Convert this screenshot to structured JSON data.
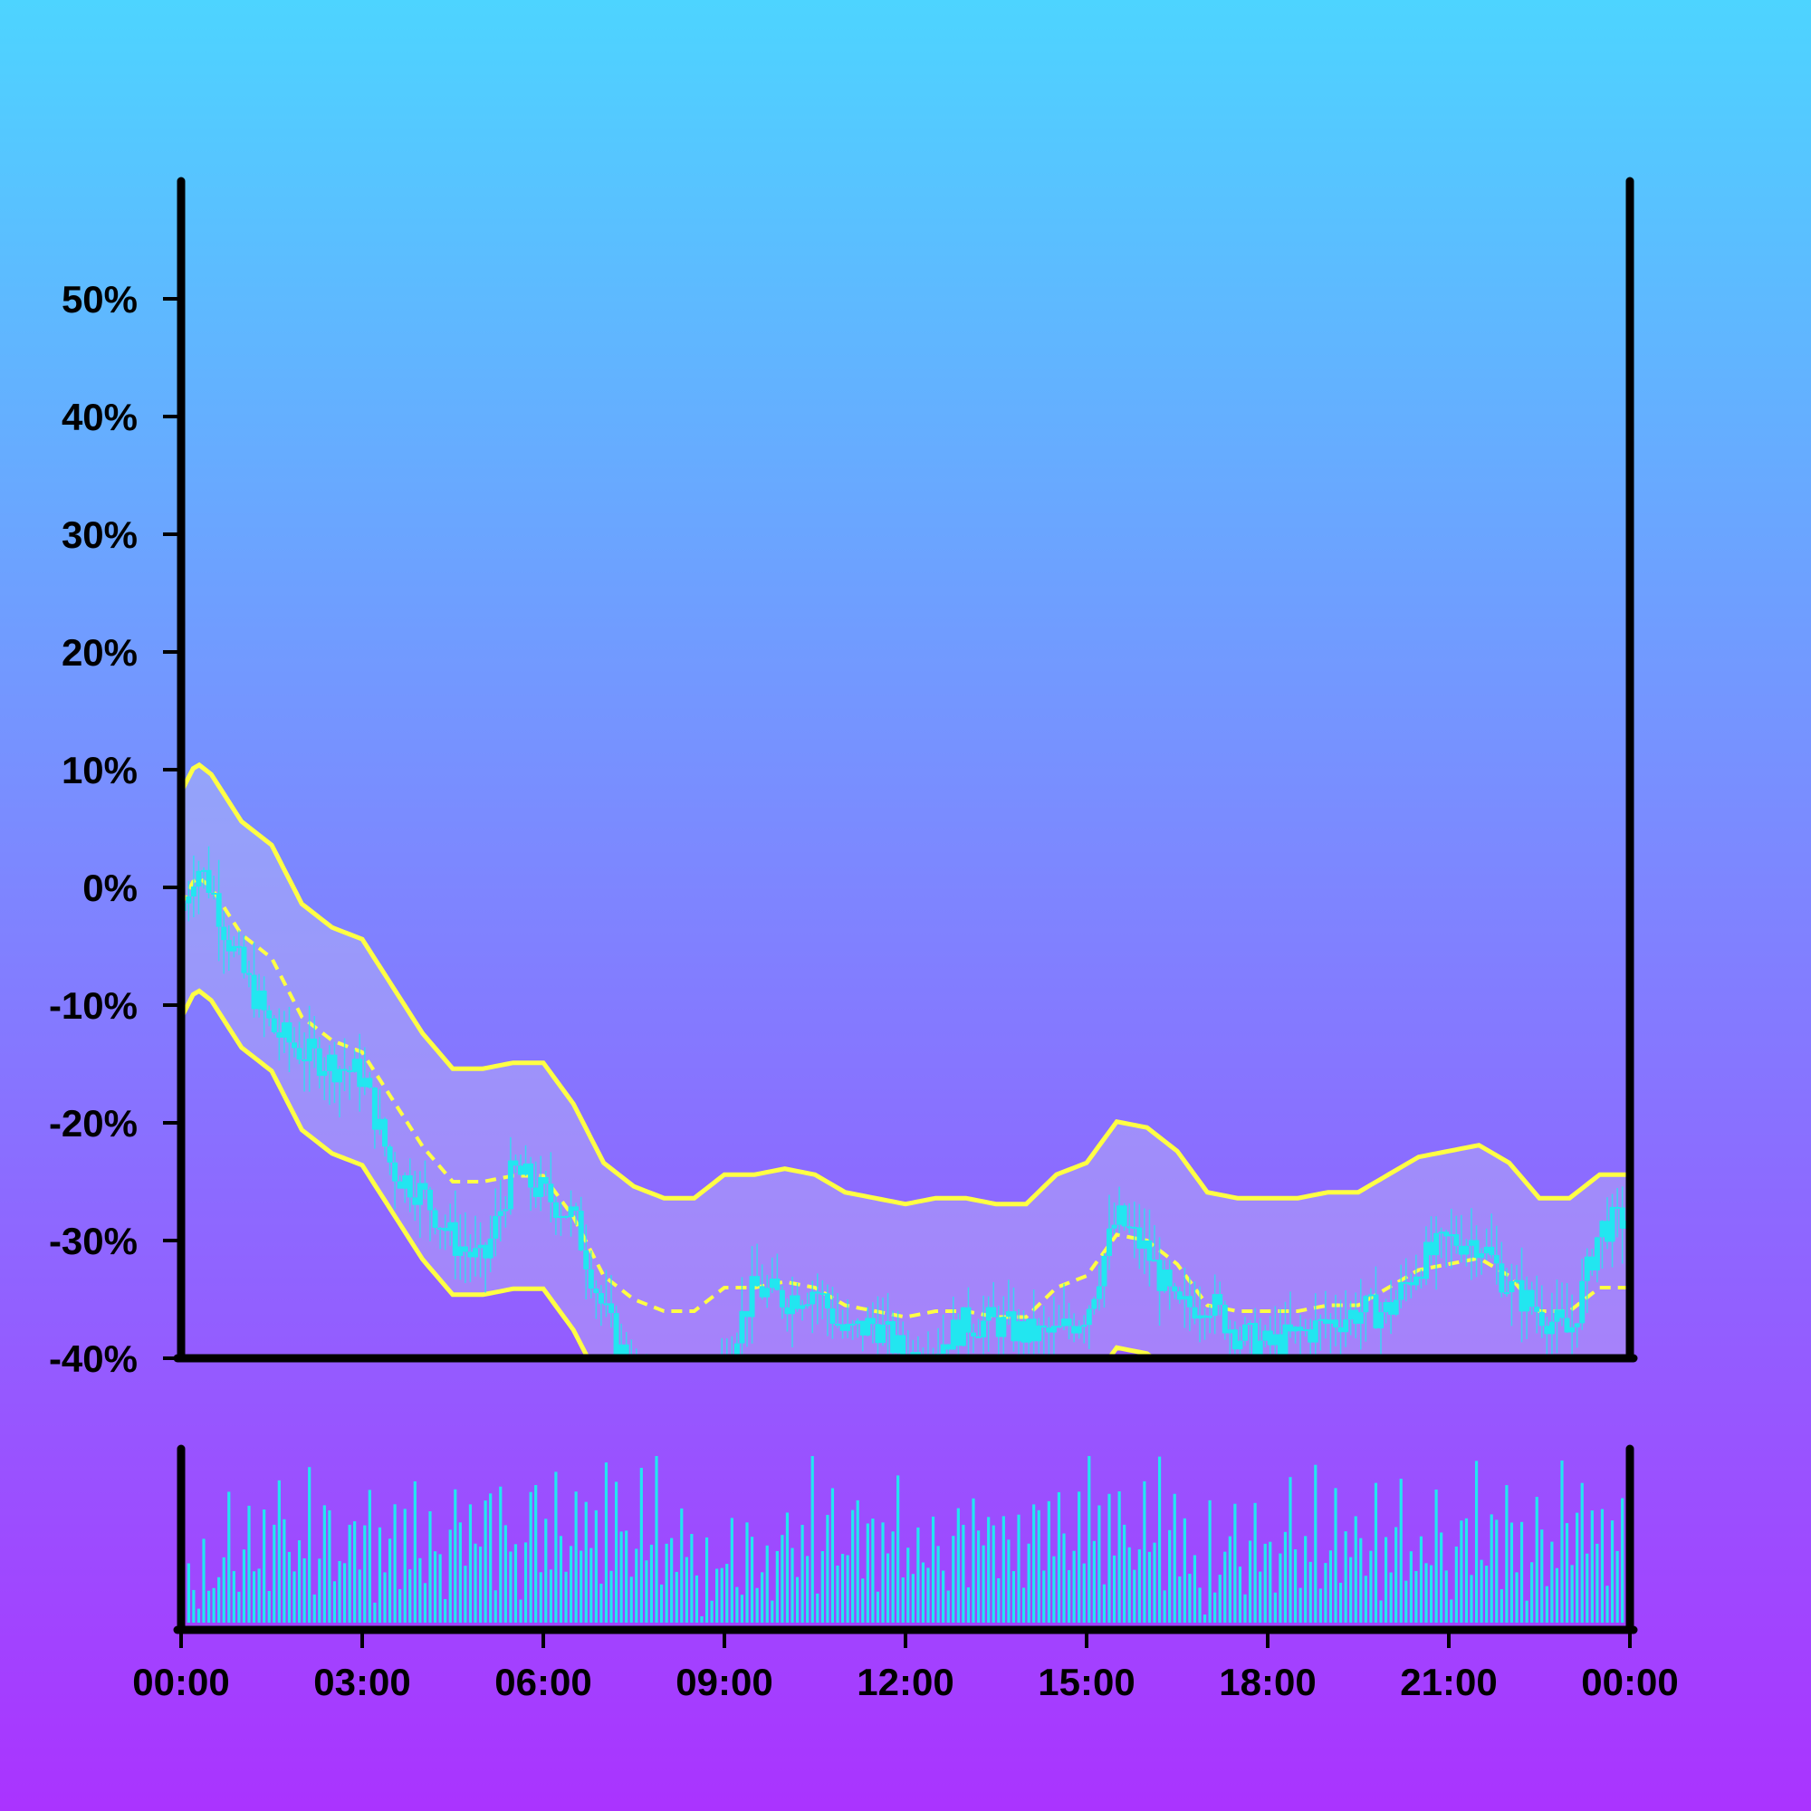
{
  "chart_data": [
    {
      "type": "candlestick",
      "panel": "price",
      "title": "",
      "xlabel": "",
      "ylabel": "",
      "ylim": [
        -40,
        60
      ],
      "y_ticks": [
        "-40%",
        "-30%",
        "-20%",
        "-10%",
        "0%",
        "10%",
        "20%",
        "30%",
        "40%",
        "50%"
      ],
      "y_tick_values": [
        -40,
        -30,
        -20,
        -10,
        0,
        10,
        20,
        30,
        40,
        50
      ],
      "x_ticks": [
        "00:00",
        "03:00",
        "06:00",
        "09:00",
        "12:00",
        "15:00",
        "18:00",
        "21:00",
        "00:00"
      ],
      "x_tick_hours": [
        0,
        3,
        6,
        9,
        12,
        15,
        18,
        21,
        24
      ],
      "xlim_hours": [
        0,
        24
      ],
      "grid": false,
      "candle_interval_minutes": 5,
      "colors": {
        "background_top": "#4dd4ff",
        "background_bottom": "#aa33ff",
        "candles": "#22e6f0",
        "bands": "#ffff44",
        "band_fill": "#c8c8f0",
        "axes": "#000000"
      },
      "close_percent_anchors": {
        "hours": [
          0,
          0.25,
          0.5,
          0.75,
          1,
          1.5,
          2,
          2.5,
          3,
          3.5,
          4,
          4.5,
          5,
          5.5,
          6,
          6.5,
          7,
          7.5,
          8,
          8.5,
          9,
          9.5,
          10,
          10.5,
          11,
          11.5,
          12,
          12.5,
          13,
          13.5,
          14,
          14.5,
          15,
          15.5,
          16,
          16.5,
          17,
          17.5,
          18,
          18.5,
          19,
          19.5,
          20,
          20.5,
          21,
          21.5,
          22,
          22.5,
          23,
          23.5,
          24
        ],
        "values": [
          -2,
          2,
          0,
          -4,
          -7,
          -12,
          -14,
          -15,
          -16,
          -24,
          -26,
          -30,
          -32,
          -24,
          -26,
          -28,
          -36,
          -42,
          -44,
          -43,
          -40,
          -34,
          -35,
          -34,
          -38,
          -37,
          -40,
          -39,
          -37,
          -37,
          -38,
          -38,
          -36,
          -28,
          -31,
          -36,
          -35,
          -38,
          -39,
          -38,
          -37,
          -36,
          -36,
          -32,
          -30,
          -30,
          -34,
          -36,
          -38,
          -29,
          -28
        ]
      },
      "middle_band_percent": {
        "hours": [
          0,
          0.25,
          0.5,
          1,
          1.5,
          2,
          2.5,
          3,
          3.5,
          4,
          4.5,
          5,
          5.5,
          6,
          6.5,
          7,
          7.5,
          8,
          8.5,
          9,
          9.5,
          10,
          10.5,
          11,
          11.5,
          12,
          12.5,
          13,
          13.5,
          14,
          14.5,
          15,
          15.5,
          16,
          16.5,
          17,
          17.5,
          18,
          18.5,
          19,
          19.5,
          20,
          20.5,
          21,
          21.5,
          22,
          22.5,
          23,
          23.5,
          24
        ],
        "values": [
          -1.5,
          1,
          0,
          -4,
          -6,
          -11,
          -13,
          -14,
          -18,
          -22,
          -25,
          -25,
          -24.5,
          -24.5,
          -28,
          -33,
          -35,
          -36,
          -36,
          -34,
          -34,
          -33.5,
          -34,
          -35.5,
          -36,
          -36.5,
          -36,
          -36,
          -36.5,
          -36.5,
          -34,
          -33,
          -29.5,
          -30,
          -32,
          -35.5,
          -36,
          -36,
          -36,
          -35.5,
          -35.5,
          -34,
          -32.5,
          -32,
          -31.5,
          -33,
          -36,
          -36,
          -34,
          -34
        ]
      },
      "band_half_width_percent": 9.6,
      "volume": {
        "panel": "volume",
        "relative_heights": [
          0.4,
          0.5,
          0.3,
          0.1,
          0.6,
          0.2,
          0.3,
          0.4,
          0.5,
          0.7,
          0.3,
          0.2,
          0.5,
          0.6,
          0.3,
          0.4,
          0.6,
          0.2,
          0.5,
          0.7,
          0.8,
          0.4,
          0.3,
          0.6,
          0.5,
          0.9,
          0.2,
          0.4,
          0.6,
          0.7,
          0.3,
          0.5,
          0.4,
          0.8,
          0.6,
          0.3,
          0.5,
          0.7,
          0.2,
          0.6,
          0.4,
          0.5,
          0.9,
          0.3,
          0.6,
          0.4,
          0.7,
          0.5,
          0.3,
          0.8,
          0.6,
          0.4,
          0.2,
          0.5,
          0.7,
          0.6,
          0.3,
          0.9,
          0.5,
          0.4,
          0.6,
          0.8,
          0.3,
          0.7,
          0.5,
          0.4,
          0.6,
          0.2,
          0.5,
          0.9,
          0.7,
          0.3,
          0.6,
          0.4,
          0.8,
          0.5,
          0.3,
          0.6,
          0.7,
          0.4,
          0.9,
          0.5,
          0.6,
          0.3,
          0.8,
          0.4,
          0.7,
          0.5,
          0.6,
          0.3,
          0.5,
          0.8,
          0.4,
          0.6,
          0.9,
          0.3,
          0.5,
          0.7,
          0.4,
          0.6
        ]
      }
    }
  ]
}
